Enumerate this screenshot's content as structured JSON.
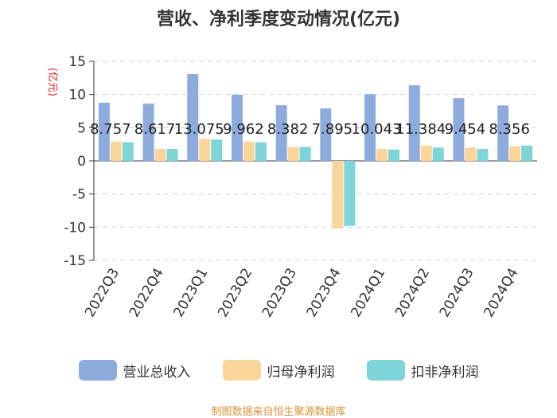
{
  "chart_data": {
    "type": "bar",
    "title": "营收、净利季度变动情况(亿元)",
    "ylabel": "(亿元)",
    "xlabel": "",
    "ylim": [
      -15,
      15
    ],
    "yticks": [
      15,
      10,
      5,
      0,
      -5,
      -10,
      -15
    ],
    "grid": true,
    "legend_position": "bottom",
    "categories": [
      "2022Q3",
      "2022Q4",
      "2023Q1",
      "2023Q2",
      "2023Q3",
      "2023Q4",
      "2024Q1",
      "2024Q2",
      "2024Q3",
      "2024Q4"
    ],
    "series": [
      {
        "name": "营业总收入",
        "color": "#8eabde",
        "values": [
          8.757,
          8.617,
          13.075,
          9.962,
          8.382,
          7.895,
          10.043,
          11.384,
          9.454,
          8.356
        ]
      },
      {
        "name": "归母净利润",
        "color": "#fcd59a",
        "values": [
          2.9,
          1.8,
          3.3,
          2.9,
          2.1,
          -10.2,
          1.8,
          2.3,
          2.0,
          2.2
        ]
      },
      {
        "name": "扣非净利润",
        "color": "#7dd5d7",
        "values": [
          2.8,
          1.8,
          3.2,
          2.8,
          2.1,
          -9.8,
          1.7,
          2.0,
          1.8,
          2.3
        ]
      }
    ],
    "data_labels": [
      "8.757",
      "8.617",
      "13.075",
      "9.962",
      "8.382",
      "7.895",
      "10.043",
      "11.384",
      "9.454",
      "8.356"
    ]
  },
  "source": "制图数据来自恒生聚源数据库",
  "colors": {
    "ylabel": "#e02020",
    "source": "#d8933a"
  }
}
